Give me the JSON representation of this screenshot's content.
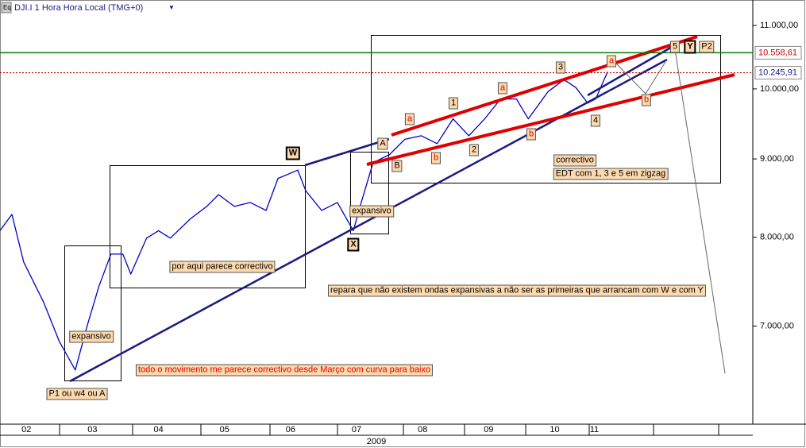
{
  "chart_data": {
    "type": "line",
    "title": "DJI.I 1 Hora Hora Local (TMG+0)",
    "color": "#0000cc",
    "log_scale": true,
    "x": [
      2.1,
      2.28,
      2.46,
      2.76,
      3.0,
      3.24,
      3.42,
      3.6,
      3.78,
      3.96,
      4.08,
      4.32,
      4.5,
      4.68,
      4.99,
      5.23,
      5.41,
      5.65,
      5.89,
      6.13,
      6.31,
      6.61,
      6.73,
      6.97,
      7.21,
      7.45,
      7.57,
      7.75,
      8.0,
      8.23,
      8.48,
      8.72,
      8.96,
      9.2,
      9.44,
      9.68,
      9.92,
      10.1,
      10.4,
      10.64,
      10.82,
      11.0,
      11.12,
      11.3
    ],
    "values": [
      8080,
      8280,
      7706,
      7256,
      6838,
      6553,
      7003,
      7434,
      7800,
      7800,
      7570,
      7990,
      8080,
      7990,
      8230,
      8380,
      8530,
      8380,
      8430,
      8330,
      8740,
      8850,
      8580,
      8330,
      8430,
      8080,
      8430,
      8950,
      9060,
      9270,
      9320,
      9210,
      9560,
      9320,
      9560,
      9850,
      9850,
      9560,
      9960,
      10140,
      10020,
      9790,
      9850,
      10260
    ],
    "xlim": [
      2.1,
      13.5
    ],
    "ylim": [
      6040,
      11430
    ],
    "xticks": [
      {
        "value": 2.5,
        "label": "02"
      },
      {
        "value": 3.5,
        "label": "03"
      },
      {
        "value": 4.5,
        "label": "04"
      },
      {
        "value": 5.5,
        "label": "05"
      },
      {
        "value": 6.5,
        "label": "06"
      },
      {
        "value": 7.5,
        "label": "07"
      },
      {
        "value": 8.5,
        "label": "08"
      },
      {
        "value": 9.5,
        "label": "09"
      },
      {
        "value": 10.5,
        "label": "10"
      },
      {
        "value": 11.1,
        "label": "11"
      }
    ],
    "yticks": [
      {
        "value": 11000,
        "label": "11.000,00"
      },
      {
        "value": 10000,
        "label": "10.000,00"
      },
      {
        "value": 9000,
        "label": "9.000,00"
      },
      {
        "value": 8000,
        "label": "8.000,00"
      },
      {
        "value": 7000,
        "label": "7.000,00"
      }
    ],
    "xlabel": "2009",
    "hlines": [
      {
        "value": 10558.61,
        "label": "10.558,61",
        "color": "#008000"
      },
      {
        "value": 10245.91,
        "label": "10.245,91",
        "color": "#cc0000"
      }
    ],
    "annotations": [
      "W",
      "X",
      "A",
      "B",
      "a",
      "b",
      "1",
      "2",
      "a",
      "b",
      "3",
      "4",
      "a",
      "b",
      "5",
      "Y",
      "P2",
      "expansivo",
      "expansivo",
      "por aqui parece correctivo",
      "repara que não existem ondas expansivas a não ser as primeiras que arrancam com W e com Y",
      "todo o movimento me parece correctivo desde Março com curva para baixo",
      "P1 ou w4 ou A",
      "correctivo",
      "EDT com 1, 3 e 5 em zigzag"
    ]
  }
}
